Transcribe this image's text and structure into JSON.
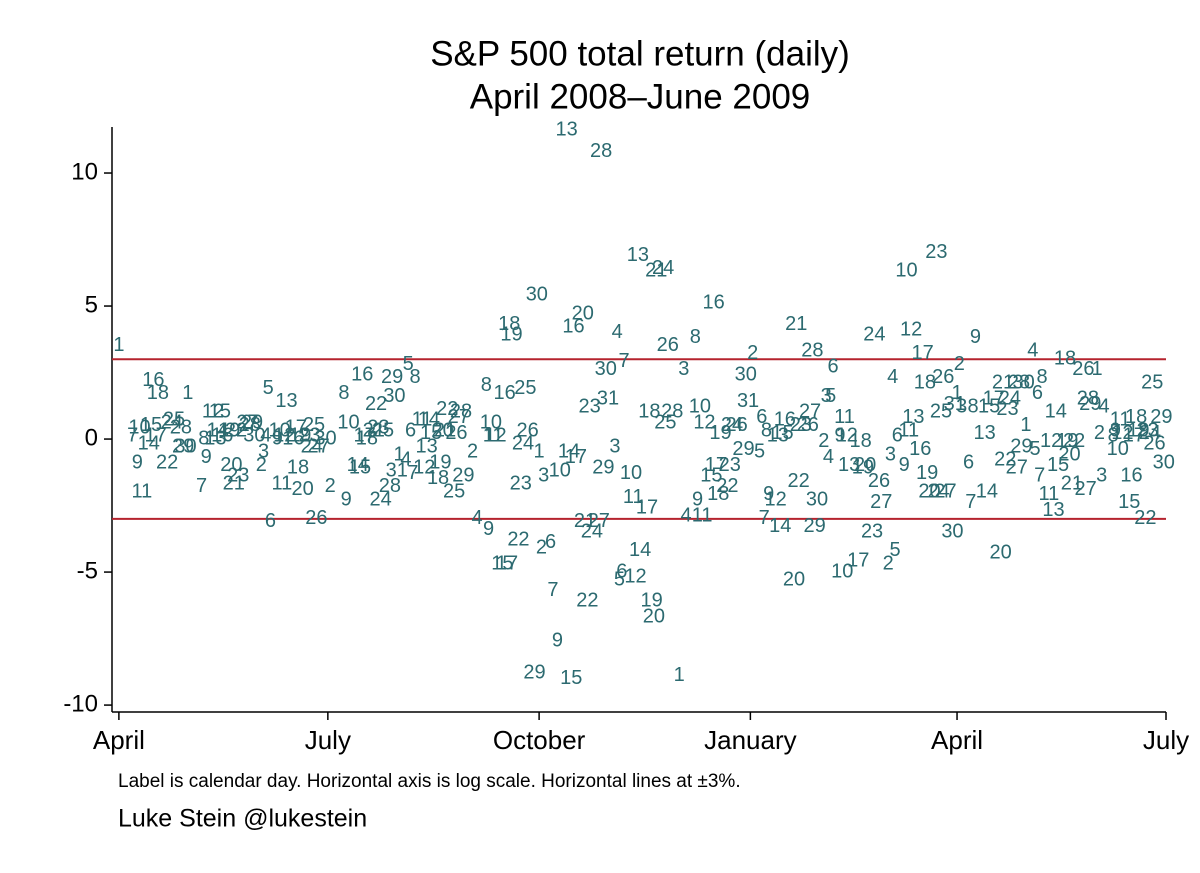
{
  "chart_data": {
    "type": "scatter",
    "title": "S&P 500 total return (daily)",
    "subtitle": "April 2008–June 2009",
    "note": "Label is calendar day. Horizontal axis is log scale. Horizontal lines at ±3%.",
    "credit": "Luke Stein @lukestein",
    "xlim": [
      "2008-03-29",
      "2009-07-01"
    ],
    "xticks": [
      {
        "value": "2008-04-01",
        "label": "April"
      },
      {
        "value": "2008-07-01",
        "label": "July"
      },
      {
        "value": "2008-10-01",
        "label": "October"
      },
      {
        "value": "2009-01-01",
        "label": "January"
      },
      {
        "value": "2009-04-01",
        "label": "April"
      },
      {
        "value": "2009-07-01",
        "label": "July"
      }
    ],
    "ylim": [
      -10.26,
      11.73
    ],
    "yticks": [
      -10,
      -5,
      0,
      5,
      10
    ],
    "hlines": [
      3,
      -3
    ],
    "hline_color": "#b5232e",
    "series": [
      {
        "color": "#2c6a70",
        "x": [
          "2008-04-01",
          "2008-04-07",
          "2008-04-09",
          "2008-04-10",
          "2008-04-11",
          "2008-04-14",
          "2008-04-15",
          "2008-04-16",
          "2008-04-17",
          "2008-04-18",
          "2008-04-22",
          "2008-04-24",
          "2008-04-25",
          "2008-04-28",
          "2008-04-29",
          "2008-04-30",
          "2008-05-01",
          "2008-05-07",
          "2008-05-08",
          "2008-05-09",
          "2008-05-12",
          "2008-05-13",
          "2008-05-14",
          "2008-05-15",
          "2008-05-16",
          "2008-05-19",
          "2008-05-20",
          "2008-05-21",
          "2008-05-22",
          "2008-05-23",
          "2008-05-27",
          "2008-05-28",
          "2008-05-29",
          "2008-05-30",
          "2008-06-02",
          "2008-06-03",
          "2008-06-04",
          "2008-06-05",
          "2008-06-06",
          "2008-06-09",
          "2008-06-10",
          "2008-06-11",
          "2008-06-12",
          "2008-06-13",
          "2008-06-16",
          "2008-06-17",
          "2008-06-18",
          "2008-06-19",
          "2008-06-20",
          "2008-06-23",
          "2008-06-24",
          "2008-06-25",
          "2008-06-26",
          "2008-06-27",
          "2008-06-30",
          "2008-07-02",
          "2008-07-08",
          "2008-07-09",
          "2008-07-10",
          "2008-07-14",
          "2008-07-15",
          "2008-07-16",
          "2008-07-17",
          "2008-07-18",
          "2008-07-21",
          "2008-07-22",
          "2008-07-23",
          "2008-07-24",
          "2008-07-25",
          "2008-07-28",
          "2008-07-29",
          "2008-07-30",
          "2008-07-31",
          "2008-08-01",
          "2008-08-04",
          "2008-08-05",
          "2008-08-06",
          "2008-08-07",
          "2008-08-08",
          "2008-08-11",
          "2008-08-12",
          "2008-08-13",
          "2008-08-14",
          "2008-08-15",
          "2008-08-18",
          "2008-08-19",
          "2008-08-20",
          "2008-08-21",
          "2008-08-22",
          "2008-08-25",
          "2008-08-26",
          "2008-08-27",
          "2008-08-28",
          "2008-08-29",
          "2008-09-02",
          "2008-09-04",
          "2008-09-08",
          "2008-09-09",
          "2008-09-10",
          "2008-09-11",
          "2008-09-12",
          "2008-09-15",
          "2008-09-16",
          "2008-09-17",
          "2008-09-18",
          "2008-09-19",
          "2008-09-22",
          "2008-09-23",
          "2008-09-24",
          "2008-09-25",
          "2008-09-26",
          "2008-09-29",
          "2008-09-30",
          "2008-10-01",
          "2008-10-02",
          "2008-10-03",
          "2008-10-06",
          "2008-10-07",
          "2008-10-09",
          "2008-10-10",
          "2008-10-13",
          "2008-10-14",
          "2008-10-15",
          "2008-10-16",
          "2008-10-17",
          "2008-10-20",
          "2008-10-21",
          "2008-10-22",
          "2008-10-23",
          "2008-10-24",
          "2008-10-27",
          "2008-10-28",
          "2008-10-29",
          "2008-10-30",
          "2008-10-31",
          "2008-11-03",
          "2008-11-04",
          "2008-11-05",
          "2008-11-06",
          "2008-11-07",
          "2008-11-10",
          "2008-11-11",
          "2008-11-12",
          "2008-11-13",
          "2008-11-14",
          "2008-11-17",
          "2008-11-18",
          "2008-11-19",
          "2008-11-20",
          "2008-11-21",
          "2008-11-24",
          "2008-11-25",
          "2008-11-26",
          "2008-11-28",
          "2008-12-01",
          "2008-12-03",
          "2008-12-04",
          "2008-12-08",
          "2008-12-09",
          "2008-12-10",
          "2008-12-11",
          "2008-12-12",
          "2008-12-15",
          "2008-12-16",
          "2008-12-17",
          "2008-12-18",
          "2008-12-19",
          "2008-12-22",
          "2008-12-23",
          "2008-12-24",
          "2008-12-26",
          "2008-12-29",
          "2008-12-30",
          "2008-12-31",
          "2009-01-02",
          "2009-01-05",
          "2009-01-06",
          "2009-01-07",
          "2009-01-08",
          "2009-01-09",
          "2009-01-12",
          "2009-01-13",
          "2009-01-14",
          "2009-01-15",
          "2009-01-16",
          "2009-01-20",
          "2009-01-21",
          "2009-01-22",
          "2009-01-23",
          "2009-01-26",
          "2009-01-27",
          "2009-01-28",
          "2009-01-29",
          "2009-01-30",
          "2009-02-02",
          "2009-02-03",
          "2009-02-04",
          "2009-02-05",
          "2009-02-06",
          "2009-02-09",
          "2009-02-10",
          "2009-02-11",
          "2009-02-12",
          "2009-02-13",
          "2009-02-17",
          "2009-02-18",
          "2009-02-19",
          "2009-02-20",
          "2009-02-23",
          "2009-02-24",
          "2009-02-26",
          "2009-02-27",
          "2009-03-02",
          "2009-03-03",
          "2009-03-04",
          "2009-03-05",
          "2009-03-06",
          "2009-03-09",
          "2009-03-10",
          "2009-03-11",
          "2009-03-12",
          "2009-03-13",
          "2009-03-16",
          "2009-03-17",
          "2009-03-18",
          "2009-03-19",
          "2009-03-20",
          "2009-03-23",
          "2009-03-24",
          "2009-03-25",
          "2009-03-26",
          "2009-03-27",
          "2009-03-30",
          "2009-03-31",
          "2009-04-01",
          "2009-04-02",
          "2009-04-03",
          "2009-04-06",
          "2009-04-07",
          "2009-04-08",
          "2009-04-09",
          "2009-04-13",
          "2009-04-14",
          "2009-04-15",
          "2009-04-17",
          "2009-04-20",
          "2009-04-21",
          "2009-04-22",
          "2009-04-23",
          "2009-04-24",
          "2009-04-27",
          "2009-04-28",
          "2009-04-29",
          "2009-04-30",
          "2009-05-01",
          "2009-05-04",
          "2009-05-05",
          "2009-05-06",
          "2009-05-07",
          "2009-05-08",
          "2009-05-11",
          "2009-05-12",
          "2009-05-13",
          "2009-05-14",
          "2009-05-15",
          "2009-05-18",
          "2009-05-19",
          "2009-05-20",
          "2009-05-21",
          "2009-05-22",
          "2009-05-26",
          "2009-05-27",
          "2009-05-28",
          "2009-05-29",
          "2009-06-01",
          "2009-06-02",
          "2009-06-03",
          "2009-06-04",
          "2009-06-08",
          "2009-06-09",
          "2009-06-10",
          "2009-06-11",
          "2009-06-12",
          "2009-06-15",
          "2009-06-16",
          "2009-06-17",
          "2009-06-18",
          "2009-06-19",
          "2009-06-22",
          "2009-06-23",
          "2009-06-24",
          "2009-06-25",
          "2009-06-26",
          "2009-06-29",
          "2009-06-30"
        ],
        "values": [
          3.5,
          0.1,
          -0.9,
          0.4,
          -2.0,
          -0.2,
          0.5,
          2.2,
          0.1,
          1.7,
          -0.9,
          0.6,
          0.7,
          0.4,
          -0.3,
          -0.3,
          1.7,
          -1.8,
          0.0,
          -0.7,
          1.0,
          0.0,
          0.3,
          1.0,
          0.1,
          0.3,
          -1.0,
          -1.7,
          0.3,
          -1.4,
          0.6,
          0.5,
          0.6,
          0.1,
          -1.0,
          -0.5,
          0.1,
          1.9,
          -3.1,
          0.0,
          0.3,
          -1.7,
          0.1,
          1.4,
          0.0,
          0.4,
          -1.1,
          0.1,
          -1.9,
          0.1,
          -0.3,
          0.5,
          -3.0,
          -0.3,
          0.0,
          -1.8,
          1.7,
          -2.3,
          0.6,
          -1.0,
          -1.1,
          2.4,
          0.1,
          0.0,
          0.3,
          1.3,
          0.4,
          -2.3,
          0.3,
          -1.8,
          2.3,
          1.6,
          -1.2,
          -0.6,
          -0.8,
          2.8,
          0.3,
          -1.3,
          2.3,
          0.7,
          -1.1,
          -0.3,
          0.7,
          0.2,
          -1.5,
          -0.9,
          0.3,
          0.3,
          1.1,
          -2.0,
          0.2,
          0.8,
          1.0,
          -1.4,
          -0.5,
          -3.0,
          2.0,
          -3.4,
          0.6,
          0.1,
          0.1,
          -4.7,
          1.7,
          -4.7,
          4.3,
          3.9,
          -3.8,
          -1.7,
          -0.2,
          1.9,
          0.3,
          -8.8,
          5.4,
          -0.5,
          -4.1,
          -1.4,
          -3.9,
          -5.7,
          -7.6,
          -1.2,
          11.6,
          -0.5,
          -9.0,
          4.2,
          -0.7,
          4.7,
          -3.1,
          -6.1,
          1.2,
          -3.5,
          -3.1,
          10.8,
          -1.1,
          2.6,
          1.5,
          -0.3,
          4.0,
          -5.3,
          -5.0,
          2.9,
          -1.3,
          -2.2,
          -5.2,
          6.9,
          -4.2,
          -2.6,
          1.0,
          -6.1,
          -6.7,
          6.3,
          6.4,
          0.6,
          3.5,
          1.0,
          -8.9,
          2.6,
          -2.9,
          3.8,
          -2.3,
          1.2,
          -2.9,
          0.6,
          -1.4,
          5.1,
          -1.0,
          -2.1,
          0.2,
          -1.8,
          -1.0,
          0.5,
          0.5,
          -0.4,
          2.4,
          1.4,
          3.2,
          -0.5,
          0.8,
          -3.0,
          0.3,
          -2.1,
          -2.3,
          0.1,
          -3.3,
          0.2,
          0.7,
          -5.3,
          4.3,
          -1.6,
          0.5,
          0.5,
          1.0,
          3.3,
          -3.3,
          -2.3,
          -0.1,
          1.6,
          -0.7,
          1.6,
          2.7,
          0.1,
          -5.0,
          0.8,
          0.1,
          -1.0,
          -4.6,
          -0.1,
          -1.1,
          -1.0,
          -3.5,
          3.9,
          -1.6,
          -2.4,
          -4.7,
          -0.6,
          2.3,
          -4.2,
          0.1,
          -1.0,
          6.3,
          0.3,
          4.1,
          0.8,
          -0.4,
          3.2,
          2.1,
          -1.3,
          -2.0,
          7.0,
          -2.0,
          1.0,
          2.3,
          -2.0,
          -3.5,
          1.3,
          1.7,
          2.8,
          1.2,
          -0.9,
          -2.4,
          1.2,
          3.8,
          0.2,
          -2.0,
          1.2,
          1.5,
          -4.3,
          2.1,
          -0.8,
          1.1,
          1.5,
          -1.1,
          2.1,
          -0.3,
          2.1,
          0.5,
          3.3,
          -0.4,
          1.7,
          -1.4,
          2.3,
          -2.1,
          -0.1,
          -2.7,
          1.0,
          -1.0,
          3.0,
          -0.1,
          -0.6,
          -1.7,
          -0.1,
          2.6,
          -1.9,
          1.5,
          1.3,
          2.6,
          0.2,
          -1.4,
          1.2,
          0.1,
          0.3,
          -0.4,
          0.7,
          0.2,
          -2.4,
          -1.4,
          0.1,
          0.8,
          0.3,
          -3.0,
          0.3,
          0.2,
          2.1,
          -0.2,
          0.8,
          -0.9
        ],
        "labels": [
          "1",
          "7",
          "9",
          "10",
          "11",
          "14",
          "15",
          "16",
          "17",
          "18",
          "22",
          "24",
          "25",
          "28",
          "29",
          "30",
          "1",
          "7",
          "8",
          "9",
          "12",
          "13",
          "14",
          "15",
          "16",
          "19",
          "20",
          "21",
          "22",
          "23",
          "27",
          "28",
          "29",
          "30",
          "2",
          "3",
          "4",
          "5",
          "6",
          "9",
          "10",
          "11",
          "12",
          "13",
          "16",
          "17",
          "18",
          "19",
          "20",
          "23",
          "24",
          "25",
          "26",
          "27",
          "30",
          "2",
          "8",
          "9",
          "10",
          "14",
          "15",
          "16",
          "17",
          "18",
          "21",
          "22",
          "23",
          "24",
          "25",
          "28",
          "29",
          "30",
          "31",
          "1",
          "4",
          "5",
          "6",
          "7",
          "8",
          "11",
          "12",
          "13",
          "14",
          "15",
          "18",
          "19",
          "20",
          "21",
          "22",
          "25",
          "26",
          "27",
          "28",
          "29",
          "2",
          "4",
          "8",
          "9",
          "10",
          "11",
          "12",
          "15",
          "16",
          "17",
          "18",
          "19",
          "22",
          "23",
          "24",
          "25",
          "26",
          "29",
          "30",
          "1",
          "2",
          "3",
          "6",
          "7",
          "9",
          "10",
          "13",
          "14",
          "15",
          "16",
          "17",
          "20",
          "21",
          "22",
          "23",
          "24",
          "27",
          "28",
          "29",
          "30",
          "31",
          "3",
          "4",
          "5",
          "6",
          "7",
          "10",
          "11",
          "12",
          "13",
          "14",
          "17",
          "18",
          "19",
          "20",
          "21",
          "24",
          "25",
          "26",
          "28",
          "1",
          "3",
          "4",
          "8",
          "9",
          "10",
          "11",
          "12",
          "15",
          "16",
          "17",
          "18",
          "19",
          "22",
          "23",
          "24",
          "26",
          "29",
          "30",
          "31",
          "2",
          "5",
          "6",
          "7",
          "8",
          "9",
          "12",
          "13",
          "14",
          "15",
          "16",
          "20",
          "21",
          "22",
          "23",
          "26",
          "27",
          "28",
          "29",
          "30",
          "2",
          "3",
          "4",
          "5",
          "6",
          "9",
          "10",
          "11",
          "12",
          "13",
          "17",
          "18",
          "19",
          "20",
          "23",
          "24",
          "26",
          "27",
          "2",
          "3",
          "4",
          "5",
          "6",
          "9",
          "10",
          "11",
          "12",
          "13",
          "16",
          "17",
          "18",
          "19",
          "20",
          "23",
          "24",
          "25",
          "26",
          "27",
          "30",
          "31",
          "1",
          "2",
          "3",
          "6",
          "7",
          "8",
          "9",
          "13",
          "14",
          "15",
          "17",
          "20",
          "21",
          "22",
          "23",
          "24",
          "27",
          "28",
          "29",
          "30",
          "1",
          "4",
          "5",
          "6",
          "7",
          "8",
          "11",
          "12",
          "13",
          "14",
          "15",
          "18",
          "19",
          "20",
          "21",
          "22",
          "26",
          "27",
          "28",
          "29",
          "1",
          "2",
          "3",
          "4",
          "8",
          "9",
          "10",
          "11",
          "12",
          "15",
          "16",
          "17",
          "18",
          "19",
          "22",
          "23",
          "24",
          "25",
          "26",
          "29",
          "30"
        ]
      }
    ]
  }
}
